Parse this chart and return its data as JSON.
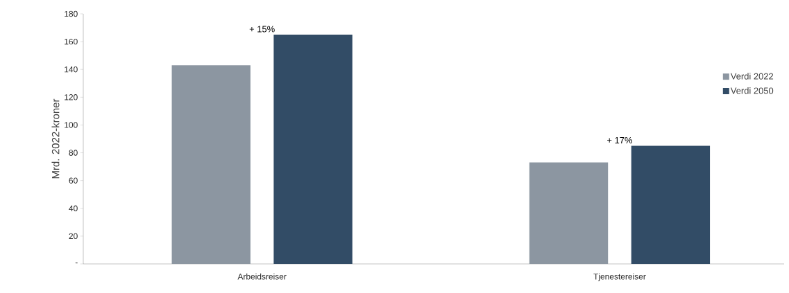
{
  "chart_data": {
    "type": "bar",
    "ylabel": "Mrd. 2022-kroner",
    "categories": [
      "Arbeidsreiser",
      "Tjenestereiser"
    ],
    "series": [
      {
        "name": "Verdi 2022",
        "color": "#8c96a1",
        "values": [
          143,
          73
        ]
      },
      {
        "name": "Verdi 2050",
        "color": "#324c66",
        "values": [
          165,
          85
        ]
      }
    ],
    "ylim": [
      0,
      180
    ],
    "yticks": [
      {
        "value": 0,
        "label": "-"
      },
      20,
      40,
      60,
      80,
      100,
      120,
      140,
      160,
      180
    ],
    "annotations": [
      "+ 15%",
      "+ 17%"
    ],
    "legend": "right",
    "grid": false
  }
}
